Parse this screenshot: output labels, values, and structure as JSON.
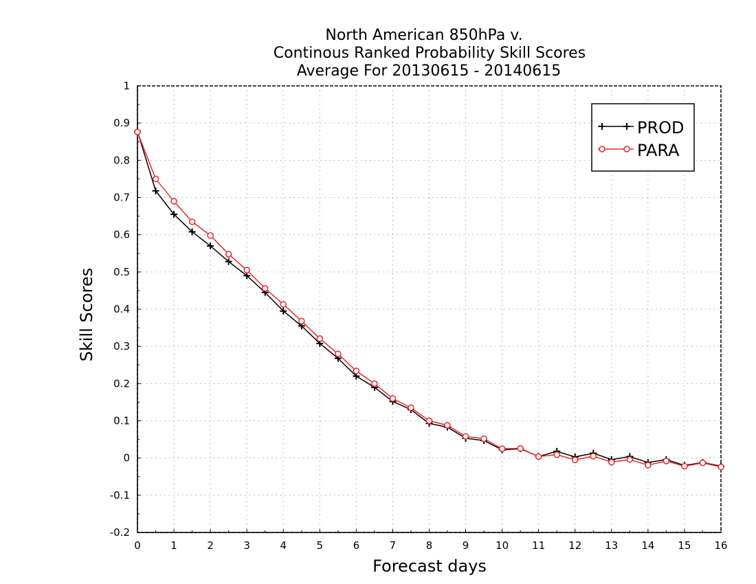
{
  "chart_data": {
    "type": "line",
    "title_lines": [
      "North American 850hPa v.",
      "Continous Ranked Probability Skill Scores",
      "Average For 20130615 - 20140615"
    ],
    "xlabel": "Forecast days",
    "ylabel": "Skill Scores",
    "xlim": [
      0,
      16
    ],
    "ylim": [
      -0.2,
      1
    ],
    "x_ticks": [
      0,
      1,
      2,
      3,
      4,
      5,
      6,
      7,
      8,
      9,
      10,
      11,
      12,
      13,
      14,
      15,
      16
    ],
    "y_ticks": [
      -0.2,
      -0.1,
      0,
      0.1,
      0.2,
      0.3,
      0.4,
      0.5,
      0.6,
      0.7,
      0.8,
      0.9,
      1
    ],
    "y_tick_labels": [
      "-0.2",
      "-0.1",
      "0",
      "0.1",
      "0.2",
      "0.3",
      "0.4",
      "0.5",
      "0.6",
      "0.7",
      "0.8",
      "0.9",
      "1"
    ],
    "grid": true,
    "legend_position": "top-right",
    "x": [
      0,
      0.5,
      1,
      1.5,
      2,
      2.5,
      3,
      3.5,
      4,
      4.5,
      5,
      5.5,
      6,
      6.5,
      7,
      7.5,
      8,
      8.5,
      9,
      9.5,
      10,
      10.5,
      11,
      11.5,
      12,
      12.5,
      13,
      13.5,
      14,
      14.5,
      15,
      15.5,
      16
    ],
    "series": [
      {
        "name": "PROD",
        "color": "#000000",
        "marker": "plus",
        "values": [
          0.878,
          0.718,
          0.655,
          0.608,
          0.57,
          0.528,
          0.49,
          0.445,
          0.395,
          0.355,
          0.308,
          0.268,
          0.22,
          0.19,
          0.152,
          0.13,
          0.093,
          0.083,
          0.053,
          0.047,
          0.022,
          0.025,
          0.004,
          0.018,
          0.003,
          0.013,
          -0.004,
          0.004,
          -0.012,
          -0.004,
          -0.02,
          -0.012,
          -0.022
        ]
      },
      {
        "name": "PARA",
        "color": "#e8262a",
        "marker": "circle",
        "values": [
          0.876,
          0.75,
          0.69,
          0.635,
          0.598,
          0.548,
          0.505,
          0.456,
          0.413,
          0.368,
          0.321,
          0.28,
          0.234,
          0.2,
          0.16,
          0.135,
          0.1,
          0.088,
          0.058,
          0.052,
          0.025,
          0.026,
          0.004,
          0.009,
          -0.005,
          0.005,
          -0.011,
          -0.004,
          -0.019,
          -0.008,
          -0.022,
          -0.013,
          -0.024
        ]
      }
    ]
  }
}
